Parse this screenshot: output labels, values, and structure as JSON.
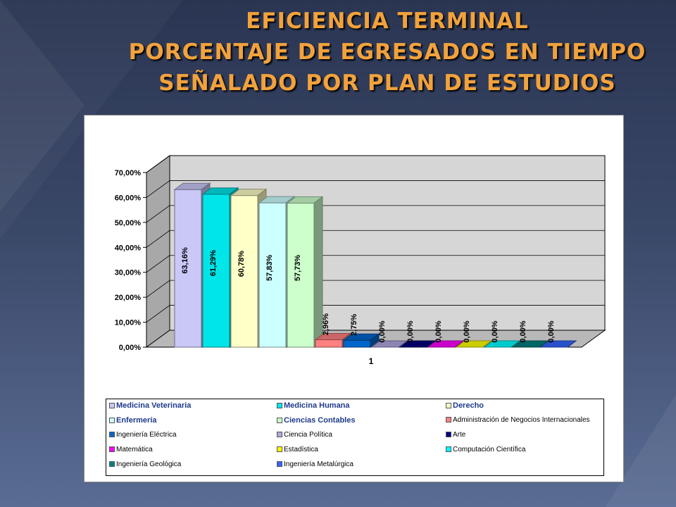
{
  "slide": {
    "title_lines": [
      "EFICIENCIA TERMINAL",
      "PORCENTAJE DE EGRESADOS  EN TIEMPO",
      "SEÑALADO POR PLAN DE ESTUDIOS"
    ],
    "title_color": "#f2a23c"
  },
  "chart_data": {
    "type": "bar",
    "three_d": true,
    "categories": [
      "1"
    ],
    "ylim": [
      0,
      70
    ],
    "yticks": [
      "0,00%",
      "10,00%",
      "20,00%",
      "30,00%",
      "40,00%",
      "50,00%",
      "60,00%",
      "70,00%"
    ],
    "xlabel": "",
    "ylabel": "",
    "grid": true,
    "legend_position": "bottom",
    "series": [
      {
        "name": "Medicina Veterinaria",
        "values": [
          63.16
        ],
        "label": "63,16%",
        "color": "#c9c8f7"
      },
      {
        "name": "Medicina Humana",
        "values": [
          61.29
        ],
        "label": "61,29%",
        "color": "#00e5e8"
      },
      {
        "name": "Derecho",
        "values": [
          60.78
        ],
        "label": "60,78%",
        "color": "#ffffc8"
      },
      {
        "name": "Enfermería",
        "values": [
          57.83
        ],
        "label": "57,83%",
        "color": "#ccffff"
      },
      {
        "name": "Ciencias Contables",
        "values": [
          57.73
        ],
        "label": "57,73%",
        "color": "#ccffcc"
      },
      {
        "name": "Administración de Negocios Internacionales",
        "values": [
          2.96
        ],
        "label": "2,96%",
        "color": "#ff8080"
      },
      {
        "name": "Ingeniería Eléctrica",
        "values": [
          2.75
        ],
        "label": "2,75%",
        "color": "#0066cc"
      },
      {
        "name": "Ciencia Política",
        "values": [
          0.0
        ],
        "label": "0,00%",
        "color": "#b3a6e0"
      },
      {
        "name": "Arte",
        "values": [
          0.0
        ],
        "label": "0,00%",
        "color": "#000080"
      },
      {
        "name": "Matemática",
        "values": [
          0.0
        ],
        "label": "0,00%",
        "color": "#ff00ff"
      },
      {
        "name": "Estadística",
        "values": [
          0.0
        ],
        "label": "0,00%",
        "color": "#ffff00"
      },
      {
        "name": "Computación Científica",
        "values": [
          0.0
        ],
        "label": "0,00%",
        "color": "#00ffff"
      },
      {
        "name": "Ingeniería Geológica",
        "values": [
          0.0
        ],
        "label": "0,00%",
        "color": "#008080"
      },
      {
        "name": "Ingeniería Metalúrgica",
        "values": [
          0.0
        ],
        "label": "0,00%",
        "color": "#3366ff"
      }
    ]
  }
}
